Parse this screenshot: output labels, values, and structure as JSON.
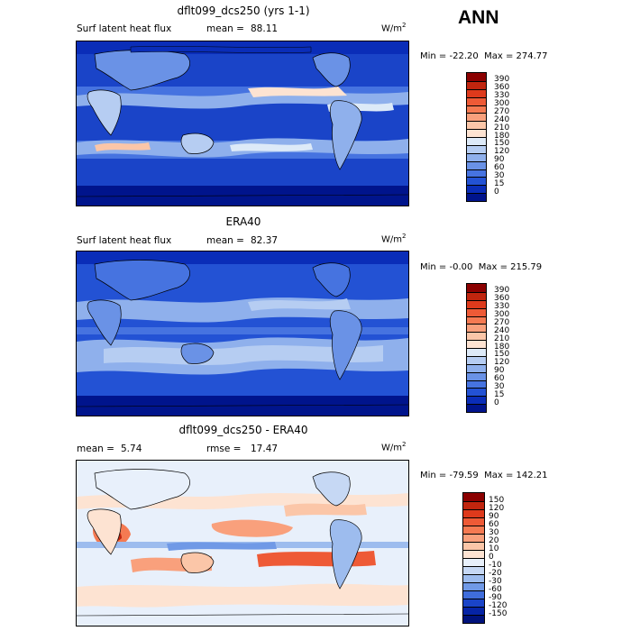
{
  "season": "ANN",
  "chart_data": [
    {
      "type": "heatmap",
      "title": "dflt099_dcs250 (yrs 1-1)",
      "variable": "Surf latent heat flux",
      "stat1_label": "mean =",
      "stat1_value": "88.11",
      "units_base": "W/m",
      "units_exp": "2",
      "min_label": "Min = ",
      "min_value": "-22.20",
      "max_label": "Max = ",
      "max_value": "274.77",
      "colorbar_levels": [
        "390",
        "360",
        "330",
        "300",
        "270",
        "240",
        "210",
        "180",
        "150",
        "120",
        "90",
        "60",
        "30",
        "15",
        "0"
      ],
      "colorbar_colors": [
        "#8b0000",
        "#c0250e",
        "#de3a1c",
        "#ee5a36",
        "#f57a52",
        "#f9a07c",
        "#fbc6a8",
        "#fde3d2",
        "#ddeaf8",
        "#b6cdf2",
        "#8fb0ec",
        "#6a92e6",
        "#4673e0",
        "#2352d4",
        "#0a2db8",
        "#00148c"
      ]
    },
    {
      "type": "heatmap",
      "title": "ERA40",
      "variable": "Surf latent heat flux",
      "stat1_label": "mean =",
      "stat1_value": "82.37",
      "units_base": "W/m",
      "units_exp": "2",
      "min_label": "Min = ",
      "min_value": "-0.00",
      "max_label": "Max = ",
      "max_value": "215.79",
      "colorbar_levels": [
        "390",
        "360",
        "330",
        "300",
        "270",
        "240",
        "210",
        "180",
        "150",
        "120",
        "90",
        "60",
        "30",
        "15",
        "0"
      ],
      "colorbar_colors": [
        "#8b0000",
        "#c0250e",
        "#de3a1c",
        "#ee5a36",
        "#f57a52",
        "#f9a07c",
        "#fbc6a8",
        "#fde3d2",
        "#ddeaf8",
        "#b6cdf2",
        "#8fb0ec",
        "#6a92e6",
        "#4673e0",
        "#2352d4",
        "#0a2db8",
        "#00148c"
      ]
    },
    {
      "type": "heatmap",
      "title": "dflt099_dcs250 - ERA40",
      "stat1_label": "mean =",
      "stat1_value": "5.74",
      "stat2_label": "rmse =",
      "stat2_value": "17.47",
      "units_base": "W/m",
      "units_exp": "2",
      "min_label": "Min = ",
      "min_value": "-79.59",
      "max_label": "Max = ",
      "max_value": "142.21",
      "colorbar_levels": [
        "150",
        "120",
        "90",
        "60",
        "30",
        "20",
        "10",
        "0",
        "-10",
        "-20",
        "-30",
        "-60",
        "-90",
        "-120",
        "-150"
      ],
      "colorbar_colors": [
        "#8b0000",
        "#c0250e",
        "#de3a1c",
        "#ee5a36",
        "#f57a52",
        "#f9a07c",
        "#fbc6a8",
        "#fde3d2",
        "#e8f0fb",
        "#c6d8f4",
        "#9dbcee",
        "#7099e6",
        "#3f6ddc",
        "#1a44c8",
        "#0624a6",
        "#00127c"
      ]
    }
  ]
}
